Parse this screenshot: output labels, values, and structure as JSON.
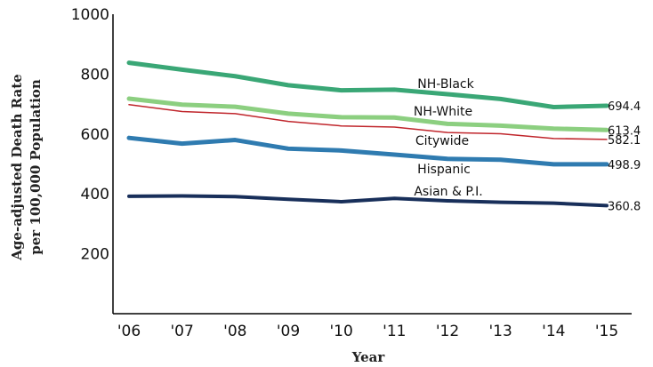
{
  "chart_data": {
    "type": "line",
    "title": "",
    "xlabel": "Year",
    "ylabel_lines": [
      "Age-adjusted Death Rate",
      "per 100,000 Population"
    ],
    "categories": [
      "'06",
      "'07",
      "'08",
      "'09",
      "'10",
      "'11",
      "'12",
      "'13",
      "'14",
      "'15"
    ],
    "y_ticks": [
      "200",
      "400",
      "600",
      "800",
      "1000"
    ],
    "ylim": [
      0,
      1000
    ],
    "grid": false,
    "legend": "inline labels",
    "series": [
      {
        "name": "NH-Black",
        "color": "#3aa776",
        "end_label": "694.4",
        "values": [
          838,
          815,
          793,
          763,
          746,
          748,
          733,
          717,
          690,
          694.4
        ]
      },
      {
        "name": "NH-White",
        "color": "#8ccf80",
        "end_label": "613.4",
        "values": [
          718,
          698,
          691,
          668,
          656,
          655,
          634,
          628,
          618,
          613.4
        ]
      },
      {
        "name": "Citywide",
        "color": "#c0262c",
        "end_label": "582.1",
        "values": [
          698,
          675,
          668,
          642,
          627,
          623,
          605,
          601,
          585,
          582.1
        ]
      },
      {
        "name": "Hispanic",
        "color": "#2f7bb0",
        "end_label": "498.9",
        "values": [
          587,
          568,
          580,
          551,
          545,
          531,
          517,
          514,
          499,
          498.9
        ]
      },
      {
        "name": "Asian & P.I.",
        "color": "#182f5a",
        "end_label": "360.8",
        "values": [
          392,
          393,
          391,
          382,
          374,
          385,
          377,
          372,
          369,
          360.8
        ]
      }
    ]
  }
}
